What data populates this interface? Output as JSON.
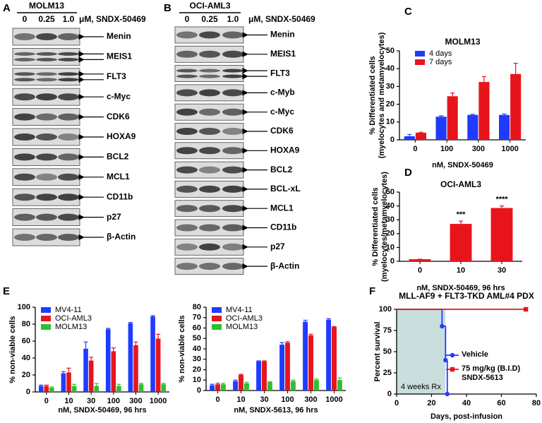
{
  "blots": [
    {
      "panel": "A",
      "title": "MOLM13",
      "lanes": [
        "0",
        "0.25",
        "1.0"
      ],
      "unit": "μM, SNDX-50469",
      "bands": [
        "Menin",
        "MEIS1",
        "FLT3",
        "c-Myc",
        "CDK6",
        "HOXA9",
        "BCL2",
        "MCL1",
        "CD11b",
        "p27",
        "β-Actin"
      ]
    },
    {
      "panel": "B",
      "title": "OCI-AML3",
      "lanes": [
        "0",
        "0.25",
        "1.0"
      ],
      "unit": "μM, SNDX-50469",
      "bands": [
        "Menin",
        "MEIS1",
        "FLT3",
        "c-Myb",
        "c-Myc",
        "CDK6",
        "HOXA9",
        "BCL2",
        "BCL-xL",
        "MCL1",
        "CD11b",
        "p27",
        "β-Actin"
      ]
    }
  ],
  "chart_data": [
    {
      "type": "bar",
      "panel": "C",
      "title": "MOLM13",
      "xlabel": "nM, SNDX-50469",
      "ylabel": [
        "% Differentiated cells",
        "(myelocytes and metamyelocytes)"
      ],
      "categories": [
        "0",
        "100",
        "300",
        "1000"
      ],
      "series": [
        {
          "name": "4 days",
          "color": "#1f3bff",
          "values": [
            2,
            13,
            14,
            14
          ],
          "errors": [
            1,
            0.5,
            0.3,
            0.5
          ]
        },
        {
          "name": "7 days",
          "color": "#e8141c",
          "values": [
            4,
            24.5,
            32.5,
            37
          ],
          "errors": [
            0.3,
            1.8,
            3,
            6
          ]
        }
      ],
      "ylim": [
        0,
        50
      ],
      "yticks": [
        0,
        10,
        20,
        30,
        40,
        50
      ],
      "legend": "upper left"
    },
    {
      "type": "bar",
      "panel": "D",
      "title": "OCI-AML3",
      "xlabel": "nM,  SNDX-50469, 96 hrs",
      "ylabel": [
        "% Differentiated cells",
        "(myelocytes/metamyelocytes)"
      ],
      "categories": [
        "0",
        "10",
        "30"
      ],
      "values": [
        1.5,
        27,
        38.5
      ],
      "errors": [
        0,
        2,
        1.5
      ],
      "annotations": [
        null,
        "***",
        "****"
      ],
      "color": "#e8141c",
      "ylim": [
        0,
        50
      ],
      "yticks": [
        0,
        10,
        20,
        30,
        40,
        50
      ]
    },
    {
      "type": "bar",
      "panel": "E",
      "xlabel": "nM,  SNDX-50469, 96 hrs",
      "ylabel": [
        "% non-viable cells"
      ],
      "categories": [
        "0",
        "10",
        "30",
        "100",
        "300",
        "1000"
      ],
      "series": [
        {
          "name": "MV4-11",
          "color": "#1f3bff",
          "values": [
            7,
            22,
            51,
            74,
            81,
            89
          ],
          "errors": [
            1,
            2,
            8,
            1,
            1,
            1
          ]
        },
        {
          "name": "OCI-AML3",
          "color": "#e8141c",
          "values": [
            7,
            23,
            37,
            48,
            55,
            63
          ],
          "errors": [
            1,
            5,
            4,
            4,
            4,
            5
          ]
        },
        {
          "name": "MOLM13",
          "color": "#2fbf2f",
          "values": [
            5,
            7,
            7,
            7,
            9,
            9
          ],
          "errors": [
            1,
            2,
            3,
            2,
            1,
            1
          ]
        }
      ],
      "ylim": [
        0,
        100
      ],
      "yticks": [
        0,
        20,
        40,
        60,
        80,
        100
      ],
      "legend": "upper left"
    },
    {
      "type": "bar",
      "xlabel": "nM, SNDX-5613, 96 hrs",
      "ylabel": [
        "% non-viable cells"
      ],
      "categories": [
        "0",
        "10",
        "30",
        "100",
        "300",
        "1000"
      ],
      "series": [
        {
          "name": "MV4-11",
          "color": "#1f3bff",
          "values": [
            5,
            9,
            28,
            44,
            66,
            68
          ],
          "errors": [
            1,
            1,
            0.5,
            2,
            1.5,
            1
          ]
        },
        {
          "name": "OCI-AML3",
          "color": "#e8141c",
          "values": [
            6,
            15,
            28,
            46,
            53,
            61
          ],
          "errors": [
            1,
            0.5,
            0.5,
            1,
            1,
            0.5
          ]
        },
        {
          "name": "MOLM13",
          "color": "#2fbf2f",
          "values": [
            6,
            7,
            8,
            9,
            10,
            10
          ],
          "errors": [
            1,
            1,
            0.5,
            1,
            1,
            2
          ]
        }
      ],
      "ylim": [
        0,
        80
      ],
      "yticks": [
        0,
        10,
        20,
        30,
        40,
        50,
        60,
        70,
        80
      ],
      "legend": "upper left"
    },
    {
      "type": "survival",
      "panel": "F",
      "title": "MLL-AF9 + FLT3-TKD AML#4 PDX",
      "xlabel": "Days, post-infusion",
      "ylabel": [
        "Percent survival"
      ],
      "series": [
        {
          "name": "Vehicle",
          "color": "#1f3bff",
          "marker": "circle",
          "x": [
            0,
            26,
            28,
            29
          ],
          "values": [
            100,
            80,
            40,
            0
          ]
        },
        {
          "name": "75 mg/kg (B.I.D) SNDX-5613",
          "color": "#e8141c",
          "marker": "square",
          "x": [
            0,
            74
          ],
          "values": [
            100,
            100
          ]
        }
      ],
      "shaded_region": {
        "x": [
          0,
          28
        ],
        "label": "4 weeks Rx",
        "color": "#c9dedd"
      },
      "xlim": [
        0,
        80
      ],
      "xticks": [
        0,
        20,
        40,
        60,
        80
      ],
      "ylim": [
        0,
        100
      ],
      "yticks": [
        0,
        25,
        50,
        75,
        100
      ],
      "legend": "center right"
    }
  ]
}
